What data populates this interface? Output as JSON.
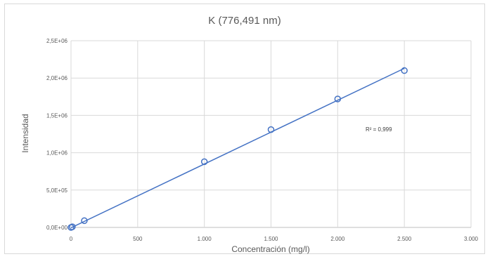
{
  "chart_data": {
    "type": "scatter",
    "title": "K (776,491 nm)",
    "xlabel": "Concentración (mg/l)",
    "ylabel": "Intensidad",
    "xlim": [
      0,
      3000
    ],
    "ylim": [
      0,
      2500000
    ],
    "x_ticks": [
      "0",
      "500",
      "1.000",
      "1.500",
      "2.000",
      "2.500",
      "3.000"
    ],
    "y_ticks": [
      "0,0E+00",
      "5,0E+05",
      "1,0E+06",
      "1,5E+06",
      "2,0E+06",
      "2,5E+06"
    ],
    "grid": true,
    "series": [
      {
        "points": [
          {
            "x": 0,
            "y": 0
          },
          {
            "x": 10,
            "y": 8000
          },
          {
            "x": 100,
            "y": 90000
          },
          {
            "x": 1000,
            "y": 880000
          },
          {
            "x": 1500,
            "y": 1310000
          },
          {
            "x": 2000,
            "y": 1720000
          },
          {
            "x": 2500,
            "y": 2100000
          }
        ],
        "marker_color": "#4472C4"
      }
    ],
    "trendline": {
      "type": "linear",
      "x": [
        0,
        2500
      ],
      "y": [
        -5000,
        2130000
      ],
      "color": "#4472C4"
    },
    "annotation": "R² = 0,999"
  }
}
